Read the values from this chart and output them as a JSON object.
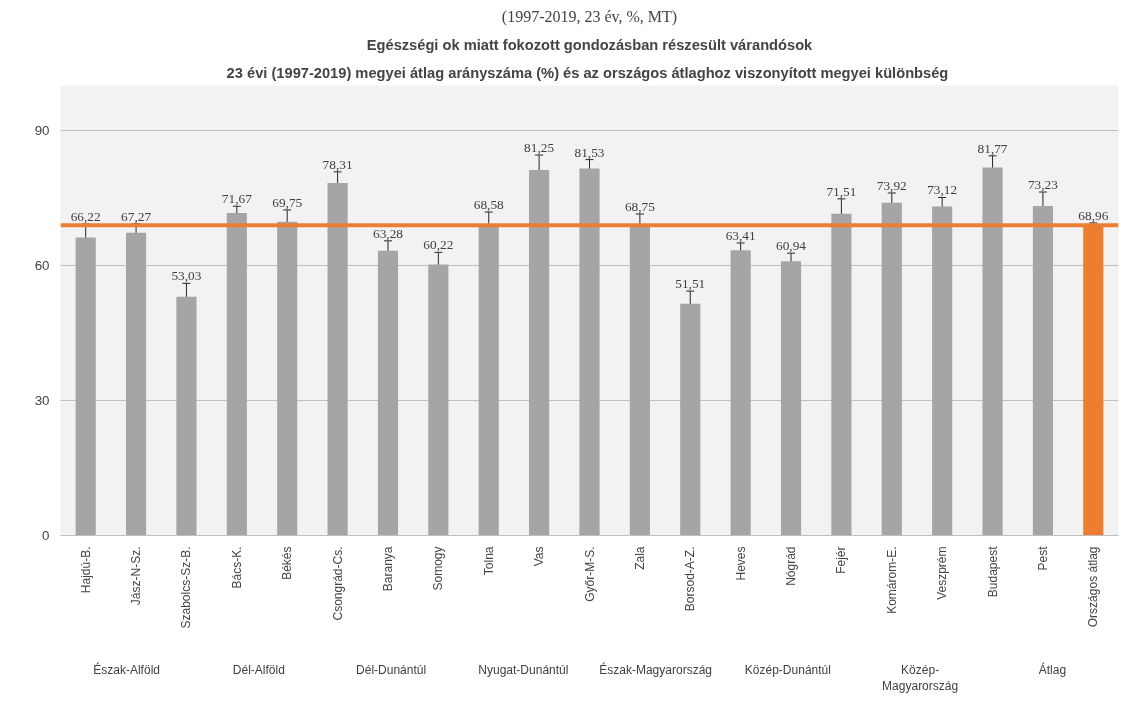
{
  "chart_data": {
    "type": "bar",
    "title": "Egészségi ok miatt fokozott gondozásban részesült várandósok",
    "subtitle": "23 évi (1997-2019)  megyei átlag arányszáma (%) és az országos átlaghoz viszonyított megyei különbség",
    "categories": [
      "Hajdú-B.",
      "Jász-N-Sz.",
      "Szabolcs-Sz-B.",
      "Bács-K.",
      "Békés",
      "Csongrád-Cs.",
      "Baranya",
      "Somogy",
      "Tolna",
      "Vas",
      "Győr-M-S.",
      "Zala",
      "Borsod-A-Z.",
      "Heves",
      "Nógrád",
      "Fejér",
      "Komárom-E.",
      "Veszprém",
      "Budapest",
      "Pest",
      "Országos átlag"
    ],
    "values": [
      66.22,
      67.27,
      53.03,
      71.67,
      69.75,
      78.31,
      63.28,
      60.22,
      68.58,
      81.25,
      81.53,
      68.75,
      51.51,
      63.41,
      60.94,
      71.51,
      73.92,
      73.12,
      81.77,
      73.23,
      68.96
    ],
    "value_labels": [
      "66,22",
      "67,27",
      "53,03",
      "71,67",
      "69,75",
      "78,31",
      "63,28",
      "60,22",
      "68,58",
      "81,25",
      "81,53",
      "68,75",
      "51,51",
      "63,41",
      "60,94",
      "71,51",
      "73,92",
      "73,12",
      "81,77",
      "73,23",
      "68,96"
    ],
    "errors": [
      3,
      2,
      3,
      1.5,
      2.6,
      2.5,
      2.2,
      2.7,
      3.3,
      3.3,
      2,
      2.7,
      2.8,
      1.6,
      1.8,
      3.3,
      2.2,
      2,
      2.6,
      3.1,
      0.5
    ],
    "colors": [
      "#a5a5a5",
      "#a5a5a5",
      "#a5a5a5",
      "#a5a5a5",
      "#a5a5a5",
      "#a5a5a5",
      "#a5a5a5",
      "#a5a5a5",
      "#a5a5a5",
      "#a5a5a5",
      "#a5a5a5",
      "#a5a5a5",
      "#a5a5a5",
      "#a5a5a5",
      "#a5a5a5",
      "#a5a5a5",
      "#a5a5a5",
      "#a5a5a5",
      "#a5a5a5",
      "#a5a5a5",
      "#ed7d31"
    ],
    "ylim": [
      0,
      100
    ],
    "yticks": [
      0,
      30,
      60,
      90
    ],
    "grid": "y",
    "ref_lines": [
      {
        "axis": "y",
        "value": 68.96,
        "color": "#ed7d31"
      }
    ],
    "annotations": [
      "(1997-2019, 23 év, %, MT)",
      "Észak-Alföld",
      "Dél-Alföld",
      "Dél-Dunántúl",
      "Nyugat-Dunántúl",
      "Észak-Magyarország",
      "Közép-Dunántúl",
      "Közép-\nMagyarország",
      "Átlag"
    ]
  }
}
